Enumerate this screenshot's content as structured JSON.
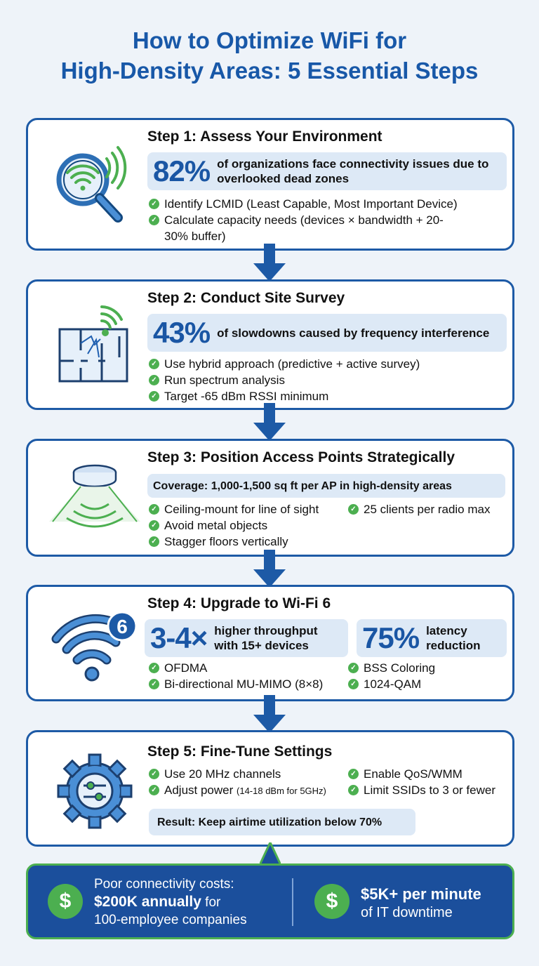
{
  "title_line1": "How to Optimize WiFi for",
  "title_line2": "High-Density Areas: 5 Essential Steps",
  "colors": {
    "primary": "#1d5aa6",
    "accent": "#4caf50",
    "stat_bg": "#dde9f6"
  },
  "steps": [
    {
      "title": "Step 1: Assess Your Environment",
      "icon": "magnifier-wifi-icon",
      "stat_value": "82%",
      "stat_text": "of organizations face connectivity issues due to overlooked dead zones",
      "items": [
        "Identify LCMID (Least Capable, Most Important Device)",
        "Calculate capacity needs (devices × bandwidth + 20-30% buffer)"
      ]
    },
    {
      "title": "Step 2: Conduct Site Survey",
      "icon": "floorplan-signal-icon",
      "stat_value": "43%",
      "stat_text": "of slowdowns caused by frequency interference",
      "items": [
        "Use hybrid approach (predictive + active survey)",
        "Run spectrum analysis",
        "Target -65 dBm RSSI minimum"
      ]
    },
    {
      "title": "Step 3: Position Access Points Strategically",
      "icon": "ceiling-access-point-icon",
      "stat_text": "Coverage: 1,000-1,500 sq ft per AP in high-density areas",
      "items": [
        "Ceiling-mount for line of sight",
        "Avoid metal objects",
        "Stagger floors vertically"
      ],
      "items_right": [
        "25 clients per radio max"
      ]
    },
    {
      "title": "Step 4: Upgrade to Wi-Fi 6",
      "icon": "wifi-6-icon",
      "icon_badge": "6",
      "stat_value": "3-4×",
      "stat_text": "higher throughput with 15+ devices",
      "stat2_value": "75%",
      "stat2_text": "latency reduction",
      "items": [
        "OFDMA",
        "Bi-directional MU-MIMO (8×8)"
      ],
      "items_right": [
        "BSS Coloring",
        "1024-QAM"
      ]
    },
    {
      "title": "Step 5: Fine-Tune Settings",
      "icon": "gear-sliders-icon",
      "items": [
        "Use 20 MHz channels",
        "Adjust power"
      ],
      "item_note": "(14-18 dBm for 5GHz)",
      "items_right": [
        "Enable QoS/WMM",
        "Limit SSIDs to 3 or fewer"
      ],
      "result": "Result: Keep airtime utilization below 70%"
    }
  ],
  "banner": {
    "left_line1": "Poor connectivity costs:",
    "left_bold": "$200K annually",
    "left_rest": " for",
    "left_line3": "100-employee companies",
    "right_bold": "$5K+ per minute",
    "right_line2": "of IT downtime",
    "dollar": "$"
  }
}
